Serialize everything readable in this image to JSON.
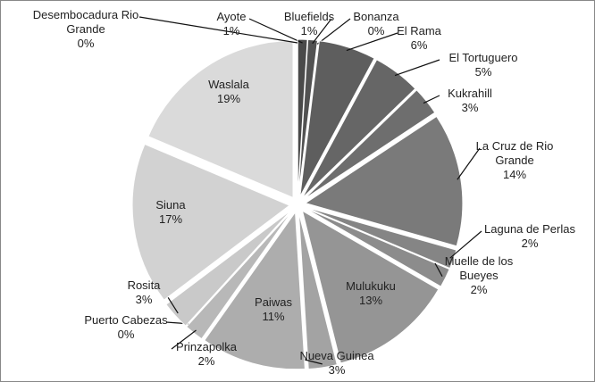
{
  "chart_data": {
    "type": "pie",
    "categories": [
      "Ayote",
      "Bluefields",
      "Bonanza",
      "El Rama",
      "El Tortuguero",
      "Kukrahill",
      "La Cruz de Rio Grande",
      "Laguna de Perlas",
      "Muelle de los Bueyes",
      "Mulukuku",
      "Nueva Guinea",
      "Paiwas",
      "Prinzapolka",
      "Puerto Cabezas",
      "Rosita",
      "Siuna",
      "Waslala",
      "Desembocadura Rio Grande"
    ],
    "values": [
      1,
      1,
      0,
      6,
      5,
      3,
      14,
      2,
      2,
      13,
      3,
      11,
      2,
      0,
      3,
      17,
      19,
      0
    ],
    "value_labels": [
      "1%",
      "1%",
      "0%",
      "6%",
      "5%",
      "3%",
      "14%",
      "2%",
      "2%",
      "13%",
      "3%",
      "11%",
      "2%",
      "0%",
      "3%",
      "17%",
      "19%",
      "0%"
    ],
    "colors": [
      "#4a4a4a",
      "#525252",
      "#5a5a5a",
      "#5e5e5e",
      "#666666",
      "#6e6e6e",
      "#7a7a7a",
      "#858585",
      "#8c8c8c",
      "#959595",
      "#a3a3a3",
      "#adadad",
      "#b8b8b8",
      "#c2c2c2",
      "#c9c9c9",
      "#d2d2d2",
      "#dadada",
      "#e0e0e0"
    ]
  }
}
